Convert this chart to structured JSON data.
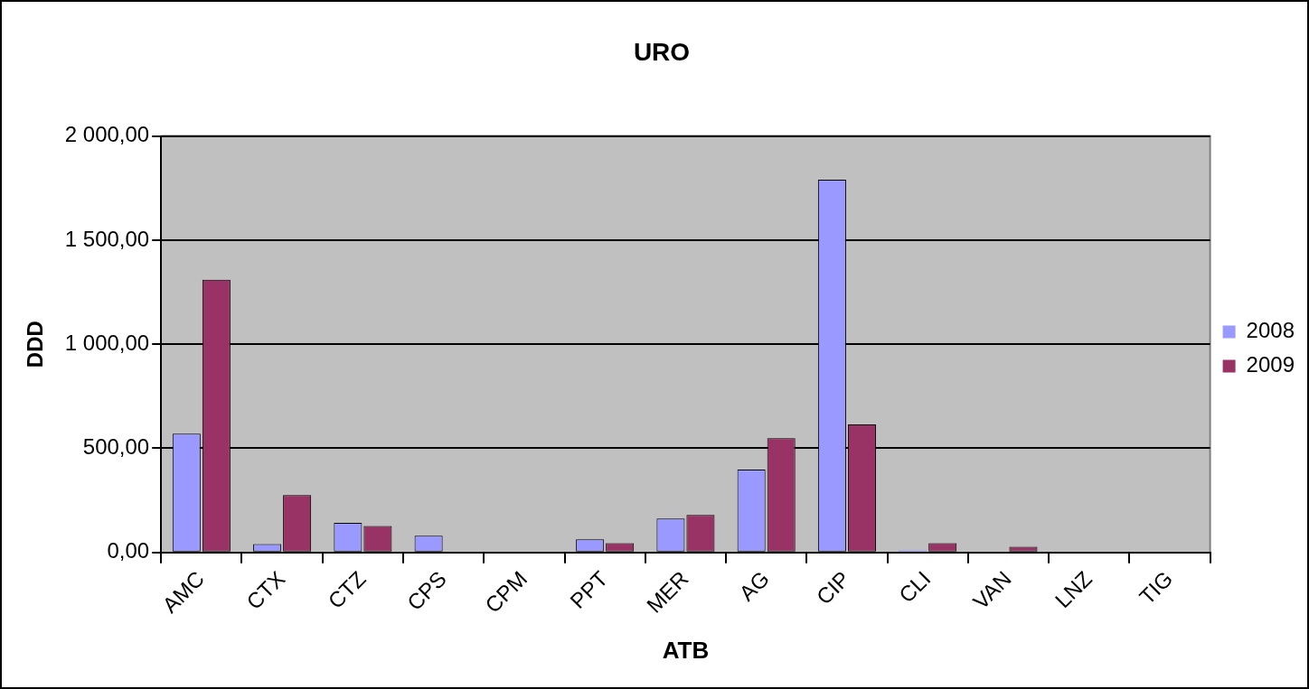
{
  "chart_data": {
    "type": "bar",
    "title": "URO",
    "xlabel": "ATB",
    "ylabel": "DDD",
    "categories": [
      "AMC",
      "CTX",
      "CTZ",
      "CPS",
      "CPM",
      "PPT",
      "MER",
      "AG",
      "CIP",
      "CLI",
      "VAN",
      "LNZ",
      "TIG"
    ],
    "series": [
      {
        "name": "2008",
        "color": "#9999ff",
        "values": [
          570,
          40,
          142,
          80,
          0,
          63,
          163,
          398,
          1790,
          10,
          0,
          0,
          0
        ]
      },
      {
        "name": "2009",
        "color": "#993366",
        "values": [
          1310,
          275,
          127,
          0,
          0,
          44,
          180,
          549,
          615,
          44,
          27,
          0,
          0
        ]
      }
    ],
    "ylim": [
      0,
      2000
    ],
    "yticks": [
      {
        "value": 0,
        "label": "0,00"
      },
      {
        "value": 500,
        "label": "500,00"
      },
      {
        "value": 1000,
        "label": "1 000,00"
      },
      {
        "value": 1500,
        "label": "1 500,00"
      },
      {
        "value": 2000,
        "label": "2 000,00"
      }
    ],
    "grid": "y",
    "legend": "right"
  }
}
